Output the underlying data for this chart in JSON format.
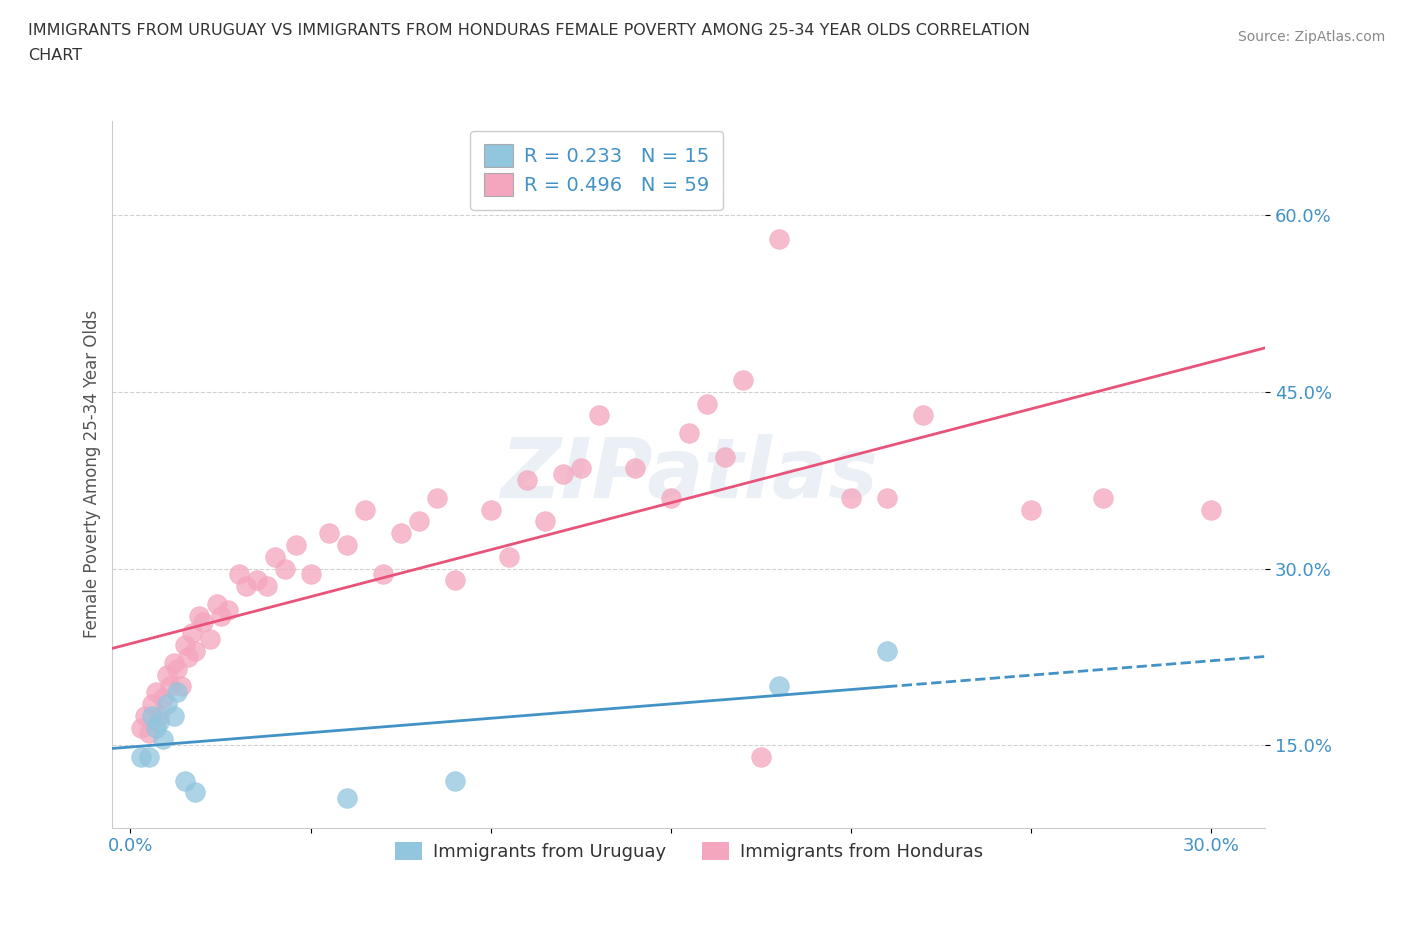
{
  "title_line1": "IMMIGRANTS FROM URUGUAY VS IMMIGRANTS FROM HONDURAS FEMALE POVERTY AMONG 25-34 YEAR OLDS CORRELATION",
  "title_line2": "CHART",
  "source": "Source: ZipAtlas.com",
  "ylabel": "Female Poverty Among 25-34 Year Olds",
  "ytick_values": [
    0.15,
    0.3,
    0.45,
    0.6
  ],
  "ytick_labels": [
    "15.0%",
    "30.0%",
    "45.0%",
    "60.0%"
  ],
  "xtick_values": [
    0.0,
    0.05,
    0.1,
    0.15,
    0.2,
    0.25,
    0.3
  ],
  "xtick_labels": [
    "0.0%",
    "",
    "",
    "",
    "",
    "",
    "30.0%"
  ],
  "xlim": [
    -0.005,
    0.315
  ],
  "ylim": [
    0.08,
    0.68
  ],
  "watermark": "ZIPatlas",
  "uruguay_color": "#92c5de",
  "honduras_color": "#f4a6be",
  "uruguay_line_color": "#4292c6",
  "honduras_line_color": "#e8537a",
  "uruguay_R": 0.233,
  "uruguay_N": 15,
  "honduras_R": 0.496,
  "honduras_N": 59,
  "legend_label_u": "R = 0.233   N = 15",
  "legend_label_h": "R = 0.496   N = 59",
  "bottom_legend_u": "Immigrants from Uruguay",
  "bottom_legend_h": "Immigrants from Honduras",
  "uruguay_x": [
    0.003,
    0.005,
    0.006,
    0.007,
    0.008,
    0.009,
    0.01,
    0.012,
    0.013,
    0.015,
    0.018,
    0.06,
    0.09,
    0.18,
    0.21
  ],
  "uruguay_y": [
    0.14,
    0.14,
    0.175,
    0.165,
    0.17,
    0.155,
    0.185,
    0.175,
    0.195,
    0.12,
    0.11,
    0.105,
    0.12,
    0.2,
    0.23
  ],
  "honduras_x": [
    0.003,
    0.004,
    0.005,
    0.006,
    0.007,
    0.008,
    0.009,
    0.01,
    0.011,
    0.012,
    0.013,
    0.014,
    0.015,
    0.016,
    0.017,
    0.018,
    0.019,
    0.02,
    0.022,
    0.024,
    0.025,
    0.027,
    0.03,
    0.032,
    0.035,
    0.038,
    0.04,
    0.043,
    0.046,
    0.05,
    0.055,
    0.06,
    0.065,
    0.07,
    0.075,
    0.08,
    0.085,
    0.09,
    0.1,
    0.105,
    0.11,
    0.115,
    0.12,
    0.125,
    0.13,
    0.14,
    0.15,
    0.155,
    0.16,
    0.165,
    0.17,
    0.175,
    0.18,
    0.2,
    0.21,
    0.22,
    0.25,
    0.27,
    0.3
  ],
  "honduras_y": [
    0.165,
    0.175,
    0.16,
    0.185,
    0.195,
    0.175,
    0.19,
    0.21,
    0.2,
    0.22,
    0.215,
    0.2,
    0.235,
    0.225,
    0.245,
    0.23,
    0.26,
    0.255,
    0.24,
    0.27,
    0.26,
    0.265,
    0.295,
    0.285,
    0.29,
    0.285,
    0.31,
    0.3,
    0.32,
    0.295,
    0.33,
    0.32,
    0.35,
    0.295,
    0.33,
    0.34,
    0.36,
    0.29,
    0.35,
    0.31,
    0.375,
    0.34,
    0.38,
    0.385,
    0.43,
    0.385,
    0.36,
    0.415,
    0.44,
    0.395,
    0.46,
    0.14,
    0.58,
    0.36,
    0.36,
    0.43,
    0.35,
    0.36,
    0.35
  ]
}
